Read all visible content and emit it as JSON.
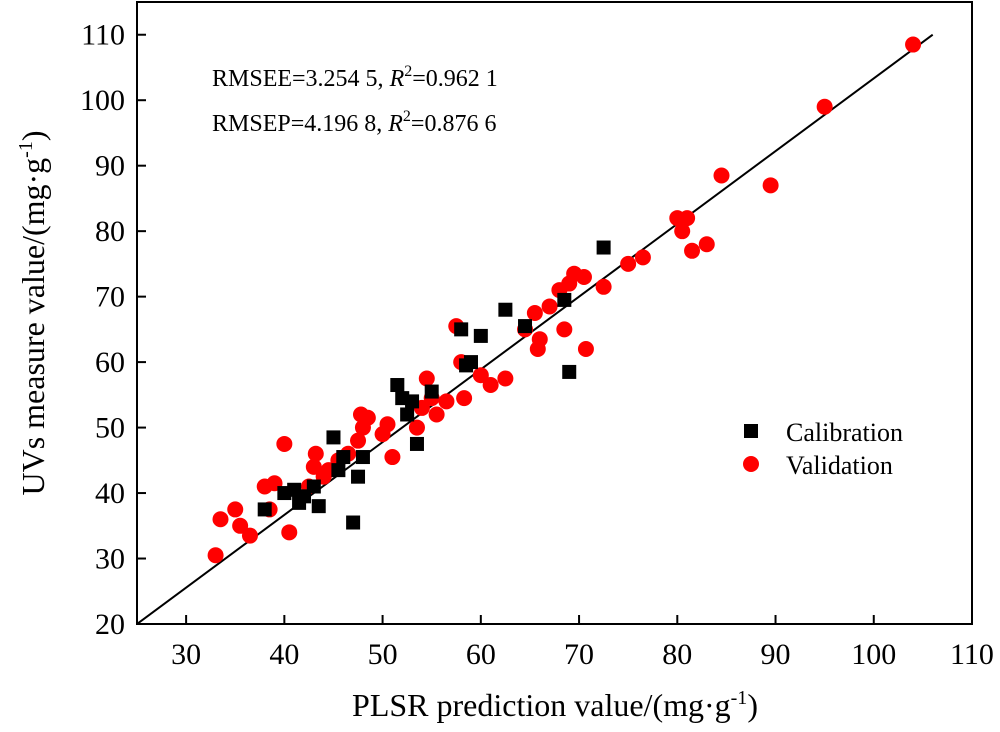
{
  "chart_data": {
    "type": "scatter",
    "xlabel": "PLSR prediction value/(mg·g",
    "xlabel_sup": "-1",
    "xlabel_end": ")",
    "ylabel": "UVs measure value/(mg·g",
    "ylabel_sup": "-1",
    "ylabel_end": ")",
    "xlim": [
      25,
      110
    ],
    "ylim": [
      20,
      115
    ],
    "xticks": [
      "30",
      "40",
      "50",
      "60",
      "70",
      "80",
      "90",
      "100",
      "110"
    ],
    "yticks": [
      "20",
      "30",
      "40",
      "50",
      "60",
      "70",
      "80",
      "90",
      "100",
      "110"
    ],
    "grid": false,
    "legend_position": "center-right",
    "annotations": {
      "line1": {
        "prefix": "RMSEE=3.254 5, ",
        "r": "R",
        "sup": "2",
        "suffix": "=0.962 1"
      },
      "line2": {
        "prefix": "RMSEP=4.196 8, ",
        "r": "R",
        "sup": "2",
        "suffix": "=0.876 6"
      }
    },
    "reference_line": {
      "x": [
        25,
        106
      ],
      "y": [
        20,
        110
      ]
    },
    "series": [
      {
        "name": "Calibration",
        "marker": "square",
        "color": "#000000",
        "points": [
          [
            38.0,
            37.5
          ],
          [
            40.0,
            40.0
          ],
          [
            41.0,
            40.5
          ],
          [
            41.5,
            38.5
          ],
          [
            42.0,
            39.5
          ],
          [
            43.0,
            41.0
          ],
          [
            43.5,
            38.0
          ],
          [
            45.0,
            48.5
          ],
          [
            45.5,
            43.5
          ],
          [
            46.0,
            45.5
          ],
          [
            47.0,
            35.5
          ],
          [
            47.5,
            42.5
          ],
          [
            48.0,
            45.5
          ],
          [
            51.5,
            56.5
          ],
          [
            52.0,
            54.5
          ],
          [
            52.5,
            52.0
          ],
          [
            53.0,
            54.0
          ],
          [
            53.5,
            47.5
          ],
          [
            55.0,
            55.5
          ],
          [
            58.0,
            65.0
          ],
          [
            58.5,
            59.5
          ],
          [
            59.0,
            60.0
          ],
          [
            60.0,
            64.0
          ],
          [
            62.5,
            68.0
          ],
          [
            64.5,
            65.5
          ],
          [
            68.5,
            69.5
          ],
          [
            69.0,
            58.5
          ],
          [
            72.5,
            77.5
          ]
        ]
      },
      {
        "name": "Validation",
        "marker": "circle",
        "color": "#ff0000",
        "points": [
          [
            33.0,
            30.5
          ],
          [
            33.5,
            36.0
          ],
          [
            35.0,
            37.5
          ],
          [
            35.5,
            35.0
          ],
          [
            36.5,
            33.5
          ],
          [
            38.0,
            41.0
          ],
          [
            38.5,
            37.5
          ],
          [
            39.0,
            41.5
          ],
          [
            40.0,
            47.5
          ],
          [
            40.5,
            34.0
          ],
          [
            42.5,
            41.0
          ],
          [
            43.0,
            44.0
          ],
          [
            43.2,
            46.0
          ],
          [
            44.0,
            42.5
          ],
          [
            44.5,
            43.5
          ],
          [
            45.5,
            45.0
          ],
          [
            46.5,
            46.0
          ],
          [
            47.5,
            48.0
          ],
          [
            47.8,
            52.0
          ],
          [
            48.0,
            50.0
          ],
          [
            48.5,
            51.5
          ],
          [
            50.0,
            49.0
          ],
          [
            50.5,
            50.5
          ],
          [
            51.0,
            45.5
          ],
          [
            53.5,
            50.0
          ],
          [
            54.0,
            53.0
          ],
          [
            54.5,
            57.5
          ],
          [
            55.0,
            54.5
          ],
          [
            55.5,
            52.0
          ],
          [
            56.5,
            54.0
          ],
          [
            57.5,
            65.5
          ],
          [
            58.0,
            60.0
          ],
          [
            58.3,
            54.5
          ],
          [
            60.0,
            58.0
          ],
          [
            61.0,
            56.5
          ],
          [
            62.5,
            57.5
          ],
          [
            64.5,
            65.0
          ],
          [
            65.5,
            67.5
          ],
          [
            65.8,
            62.0
          ],
          [
            66.0,
            63.5
          ],
          [
            67.0,
            68.5
          ],
          [
            68.0,
            71.0
          ],
          [
            68.5,
            65.0
          ],
          [
            69.0,
            72.0
          ],
          [
            69.5,
            73.5
          ],
          [
            70.5,
            73.0
          ],
          [
            70.7,
            62.0
          ],
          [
            72.5,
            71.5
          ],
          [
            75.0,
            75.0
          ],
          [
            76.5,
            76.0
          ],
          [
            80.0,
            82.0
          ],
          [
            80.5,
            80.0
          ],
          [
            81.0,
            82.0
          ],
          [
            81.5,
            77.0
          ],
          [
            83.0,
            78.0
          ],
          [
            84.5,
            88.5
          ],
          [
            89.5,
            87.0
          ],
          [
            95.0,
            99.0
          ],
          [
            104.0,
            108.5
          ]
        ]
      }
    ]
  }
}
